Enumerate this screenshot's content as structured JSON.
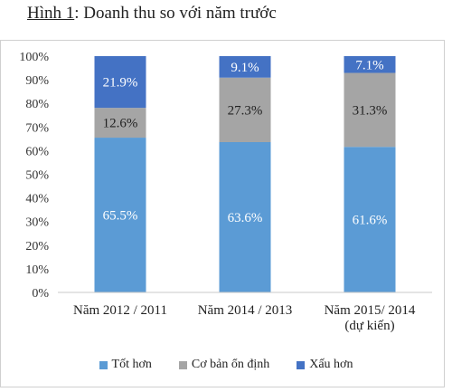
{
  "title": {
    "prefix": "Hình 1",
    "rest": ": Doanh thu so với năm trước"
  },
  "chart_data": {
    "type": "bar",
    "stacked": true,
    "categories": [
      [
        "Năm 2012 / 2011"
      ],
      [
        "Năm 2014 / 2013"
      ],
      [
        "Năm 2015/ 2014",
        "(dự kiến)"
      ]
    ],
    "series": [
      {
        "name": "Tốt hơn",
        "color": "#5b9bd5",
        "values": [
          65.5,
          63.6,
          61.6
        ],
        "labels": [
          "65.5%",
          "63.6%",
          "61.6%"
        ]
      },
      {
        "name": "Cơ bản ổn định",
        "color": "#a5a5a5",
        "values": [
          12.6,
          27.3,
          31.3
        ],
        "labels": [
          "12.6%",
          "27.3%",
          "31.3%"
        ]
      },
      {
        "name": "Xấu hơn",
        "color": "#4472c4",
        "values": [
          21.9,
          9.1,
          7.1
        ],
        "labels": [
          "21.9%",
          "9.1%",
          "7.1%"
        ]
      }
    ],
    "ylim": [
      0,
      100
    ],
    "yticks": [
      "0%",
      "10%",
      "20%",
      "30%",
      "40%",
      "50%",
      "60%",
      "70%",
      "80%",
      "90%",
      "100%"
    ],
    "grid": false,
    "legend_position": "bottom"
  }
}
